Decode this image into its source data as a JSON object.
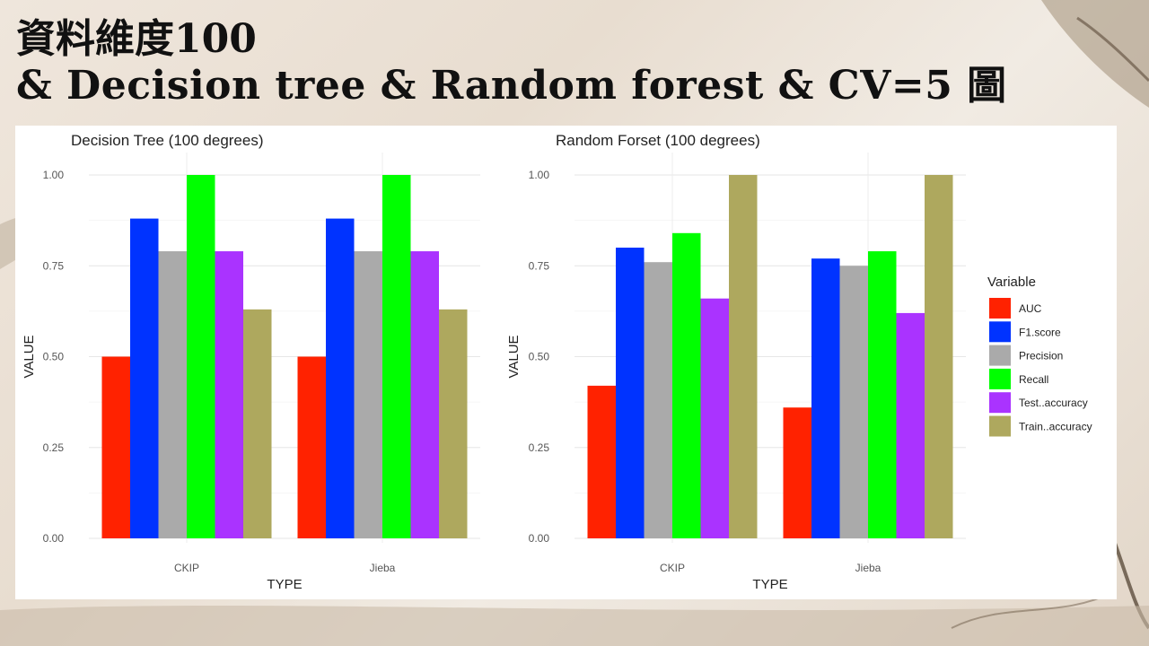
{
  "slide": {
    "title_line1": "資料維度100",
    "title_line2": "& Decision tree & Random forest & CV=5 圖"
  },
  "legend": {
    "title": "Variable",
    "items": [
      {
        "name": "AUC",
        "color": "#ff2200"
      },
      {
        "name": "F1.score",
        "color": "#0033ff"
      },
      {
        "name": "Precision",
        "color": "#aaaaaa"
      },
      {
        "name": "Recall",
        "color": "#00ff00"
      },
      {
        "name": "Test..accuracy",
        "color": "#aa33ff"
      },
      {
        "name": "Train..accuracy",
        "color": "#aea85e"
      }
    ]
  },
  "chart_data": [
    {
      "type": "bar",
      "title": "Decision Tree (100 degrees)",
      "xlabel": "TYPE",
      "ylabel": "VALUE",
      "ylim": [
        0,
        1
      ],
      "yticks": [
        "0.00",
        "0.25",
        "0.50",
        "0.75",
        "1.00"
      ],
      "categories": [
        "CKIP",
        "Jieba"
      ],
      "series": [
        {
          "name": "AUC",
          "values": [
            0.5,
            0.5
          ]
        },
        {
          "name": "F1.score",
          "values": [
            0.88,
            0.88
          ]
        },
        {
          "name": "Precision",
          "values": [
            0.79,
            0.79
          ]
        },
        {
          "name": "Recall",
          "values": [
            1.0,
            1.0
          ]
        },
        {
          "name": "Test..accuracy",
          "values": [
            0.79,
            0.79
          ]
        },
        {
          "name": "Train..accuracy",
          "values": [
            0.63,
            0.63
          ]
        }
      ]
    },
    {
      "type": "bar",
      "title": "Random Forset (100 degrees)",
      "xlabel": "TYPE",
      "ylabel": "VALUE",
      "ylim": [
        0,
        1
      ],
      "yticks": [
        "0.00",
        "0.25",
        "0.50",
        "0.75",
        "1.00"
      ],
      "categories": [
        "CKIP",
        "Jieba"
      ],
      "series": [
        {
          "name": "AUC",
          "values": [
            0.42,
            0.36
          ]
        },
        {
          "name": "F1.score",
          "values": [
            0.8,
            0.77
          ]
        },
        {
          "name": "Precision",
          "values": [
            0.76,
            0.75
          ]
        },
        {
          "name": "Recall",
          "values": [
            0.84,
            0.79
          ]
        },
        {
          "name": "Test..accuracy",
          "values": [
            0.66,
            0.62
          ]
        },
        {
          "name": "Train..accuracy",
          "values": [
            1.0,
            1.0
          ]
        }
      ]
    }
  ]
}
